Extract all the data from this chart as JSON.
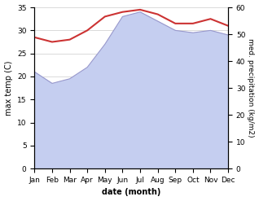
{
  "months": [
    "Jan",
    "Feb",
    "Mar",
    "Apr",
    "May",
    "Jun",
    "Jul",
    "Aug",
    "Sep",
    "Oct",
    "Nov",
    "Dec"
  ],
  "temp": [
    28.5,
    27.5,
    28.0,
    30.0,
    33.0,
    34.0,
    34.5,
    33.5,
    31.5,
    31.5,
    32.5,
    31.0
  ],
  "precip_left": [
    21,
    18.5,
    19.5,
    22,
    27,
    33,
    34,
    32,
    30,
    29.5,
    30,
    29
  ],
  "temp_color": "#cc3333",
  "precip_fill_color": "#c5cef0",
  "precip_line_color": "#9999cc",
  "background_color": "#ffffff",
  "ylabel_left": "max temp (C)",
  "ylabel_right": "med. precipitation (kg/m2)",
  "xlabel": "date (month)",
  "ylim_left": [
    0,
    35
  ],
  "ylim_right": [
    0,
    60
  ],
  "yticks_left": [
    0,
    5,
    10,
    15,
    20,
    25,
    30,
    35
  ],
  "yticks_right": [
    0,
    10,
    20,
    30,
    40,
    50,
    60
  ]
}
